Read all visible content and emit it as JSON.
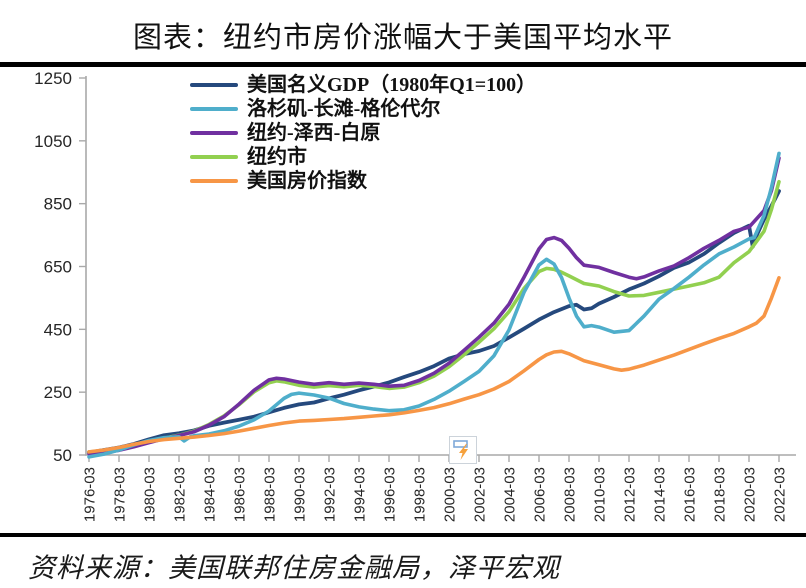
{
  "page": {
    "title": "图表：纽约市房价涨幅大于美国平均水平",
    "source": "资料来源：美国联邦住房金融局，泽平宏观"
  },
  "colors": {
    "rule": "#000000",
    "axis": "#A9A9A9",
    "tick_label": "#262626",
    "gdp_navy": "#25497D",
    "la_aqua": "#4FAECB",
    "ny_metro_purple": "#7030A0",
    "nyc_green": "#92D050",
    "us_hpi_orange": "#F79646"
  },
  "watermark": {
    "name": "zeping-macro-logo"
  },
  "chart_data": {
    "type": "line",
    "title": "图表：纽约市房价涨幅大于美国平均水平",
    "source": "资料来源：美国联邦住房金融局，泽平宏观",
    "grid": false,
    "legend_position": "top-left-inside",
    "x_axis": {
      "tick_labels": [
        "1976-03",
        "1978-03",
        "1980-03",
        "1982-03",
        "1984-03",
        "1986-03",
        "1988-03",
        "1990-03",
        "1992-03",
        "1994-03",
        "1996-03",
        "1998-03",
        "2000-03",
        "2002-03",
        "2004-03",
        "2006-03",
        "2008-03",
        "2010-03",
        "2012-03",
        "2014-03",
        "2016-03",
        "2018-03",
        "2020-03",
        "2022-03"
      ],
      "start_year": 1976.25,
      "tick_step_years": 2
    },
    "y_axis": {
      "ticks": [
        50,
        250,
        450,
        650,
        850,
        1050,
        1250
      ],
      "min": 50,
      "max": 1250
    },
    "series": [
      {
        "id": "us-nominal-gdp",
        "name": "美国名义GDP（1980年Q1=100）",
        "color": "#25497D",
        "z": 1,
        "width": 3.8,
        "points": [
          [
            1976.25,
            58
          ],
          [
            1977.25,
            66
          ],
          [
            1978.25,
            74
          ],
          [
            1979.25,
            85
          ],
          [
            1980.25,
            100
          ],
          [
            1981.25,
            113
          ],
          [
            1982.25,
            119
          ],
          [
            1983.25,
            128
          ],
          [
            1984.25,
            143
          ],
          [
            1985.25,
            153
          ],
          [
            1986.25,
            162
          ],
          [
            1987.25,
            172
          ],
          [
            1988.25,
            186
          ],
          [
            1989.25,
            200
          ],
          [
            1990.25,
            211
          ],
          [
            1991.25,
            217
          ],
          [
            1992.25,
            230
          ],
          [
            1993.25,
            242
          ],
          [
            1994.25,
            256
          ],
          [
            1995.25,
            268
          ],
          [
            1996.25,
            281
          ],
          [
            1997.25,
            298
          ],
          [
            1998.25,
            314
          ],
          [
            1999.25,
            333
          ],
          [
            2000.25,
            357
          ],
          [
            2001.25,
            371
          ],
          [
            2002.25,
            381
          ],
          [
            2003.25,
            397
          ],
          [
            2004.25,
            424
          ],
          [
            2005.25,
            452
          ],
          [
            2006.25,
            481
          ],
          [
            2007.25,
            505
          ],
          [
            2008.25,
            524
          ],
          [
            2008.75,
            528
          ],
          [
            2009.25,
            513
          ],
          [
            2009.75,
            517
          ],
          [
            2010.25,
            532
          ],
          [
            2011.25,
            553
          ],
          [
            2012.25,
            577
          ],
          [
            2013.25,
            596
          ],
          [
            2014.25,
            619
          ],
          [
            2015.25,
            646
          ],
          [
            2016.25,
            663
          ],
          [
            2017.25,
            690
          ],
          [
            2018.25,
            725
          ],
          [
            2019.25,
            757
          ],
          [
            2020.25,
            780
          ],
          [
            2020.5,
            713
          ],
          [
            2020.75,
            748
          ],
          [
            2021.25,
            800
          ],
          [
            2021.75,
            843
          ],
          [
            2022.25,
            890
          ]
        ]
      },
      {
        "id": "la-long-beach-glendale",
        "name": "洛杉矶-长滩-格伦代尔",
        "color": "#4FAECB",
        "z": 4,
        "width": 3.6,
        "points": [
          [
            1976.25,
            44
          ],
          [
            1977.25,
            53
          ],
          [
            1978.25,
            66
          ],
          [
            1979.25,
            82
          ],
          [
            1980.25,
            96
          ],
          [
            1981.25,
            105
          ],
          [
            1982.25,
            108
          ],
          [
            1982.6,
            95
          ],
          [
            1983.0,
            108
          ],
          [
            1983.25,
            111
          ],
          [
            1984.25,
            117
          ],
          [
            1985.25,
            127
          ],
          [
            1986.25,
            142
          ],
          [
            1987.25,
            162
          ],
          [
            1988.25,
            190
          ],
          [
            1989.25,
            230
          ],
          [
            1989.75,
            243
          ],
          [
            1990.25,
            247
          ],
          [
            1991.25,
            241
          ],
          [
            1992.25,
            231
          ],
          [
            1993.25,
            214
          ],
          [
            1994.25,
            203
          ],
          [
            1995.25,
            196
          ],
          [
            1996.25,
            191
          ],
          [
            1997.25,
            194
          ],
          [
            1998.25,
            206
          ],
          [
            1999.25,
            227
          ],
          [
            2000.25,
            253
          ],
          [
            2001.25,
            284
          ],
          [
            2002.25,
            316
          ],
          [
            2003.25,
            366
          ],
          [
            2004.25,
            448
          ],
          [
            2005.25,
            568
          ],
          [
            2006.25,
            655
          ],
          [
            2006.75,
            673
          ],
          [
            2007.25,
            658
          ],
          [
            2007.75,
            615
          ],
          [
            2008.25,
            550
          ],
          [
            2008.75,
            492
          ],
          [
            2009.25,
            458
          ],
          [
            2009.75,
            462
          ],
          [
            2010.25,
            457
          ],
          [
            2011.25,
            441
          ],
          [
            2012.25,
            446
          ],
          [
            2013.25,
            492
          ],
          [
            2014.25,
            546
          ],
          [
            2015.25,
            580
          ],
          [
            2016.25,
            616
          ],
          [
            2017.25,
            655
          ],
          [
            2018.25,
            690
          ],
          [
            2019.25,
            712
          ],
          [
            2020.25,
            738
          ],
          [
            2020.6,
            742
          ],
          [
            2021.25,
            812
          ],
          [
            2021.75,
            902
          ],
          [
            2022.25,
            1010
          ]
        ]
      },
      {
        "id": "ny-jersey-white-plains",
        "name": "纽约-泽西-白原",
        "color": "#7030A0",
        "z": 3,
        "width": 3.6,
        "points": [
          [
            1976.25,
            54
          ],
          [
            1977.25,
            58
          ],
          [
            1978.25,
            65
          ],
          [
            1979.25,
            76
          ],
          [
            1980.25,
            89
          ],
          [
            1981.25,
            102
          ],
          [
            1982.25,
            112
          ],
          [
            1983.25,
            124
          ],
          [
            1984.25,
            145
          ],
          [
            1985.25,
            172
          ],
          [
            1986.25,
            212
          ],
          [
            1987.25,
            256
          ],
          [
            1988.25,
            289
          ],
          [
            1988.75,
            294
          ],
          [
            1989.25,
            292
          ],
          [
            1990.25,
            282
          ],
          [
            1991.25,
            275
          ],
          [
            1992.25,
            280
          ],
          [
            1993.25,
            275
          ],
          [
            1994.25,
            279
          ],
          [
            1995.25,
            275
          ],
          [
            1996.25,
            269
          ],
          [
            1997.25,
            272
          ],
          [
            1998.25,
            287
          ],
          [
            1999.25,
            310
          ],
          [
            2000.25,
            342
          ],
          [
            2001.25,
            383
          ],
          [
            2002.25,
            425
          ],
          [
            2003.25,
            470
          ],
          [
            2004.25,
            530
          ],
          [
            2005.25,
            616
          ],
          [
            2006.25,
            706
          ],
          [
            2006.75,
            736
          ],
          [
            2007.25,
            742
          ],
          [
            2007.75,
            733
          ],
          [
            2008.25,
            708
          ],
          [
            2008.75,
            678
          ],
          [
            2009.25,
            654
          ],
          [
            2010.25,
            647
          ],
          [
            2011.25,
            631
          ],
          [
            2012.25,
            616
          ],
          [
            2012.75,
            611
          ],
          [
            2013.25,
            617
          ],
          [
            2014.25,
            636
          ],
          [
            2015.25,
            652
          ],
          [
            2016.25,
            678
          ],
          [
            2017.25,
            708
          ],
          [
            2018.25,
            733
          ],
          [
            2019.25,
            762
          ],
          [
            2020.25,
            775
          ],
          [
            2021.25,
            828
          ],
          [
            2021.75,
            892
          ],
          [
            2022.25,
            995
          ]
        ]
      },
      {
        "id": "new-york-city",
        "name": "纽约市",
        "color": "#92D050",
        "z": 2,
        "width": 3.6,
        "points": [
          [
            1976.25,
            60
          ],
          [
            1977.25,
            63
          ],
          [
            1978.25,
            70
          ],
          [
            1979.25,
            80
          ],
          [
            1980.25,
            91
          ],
          [
            1981.25,
            103
          ],
          [
            1982.25,
            113
          ],
          [
            1983.25,
            126
          ],
          [
            1984.25,
            147
          ],
          [
            1985.25,
            174
          ],
          [
            1986.25,
            210
          ],
          [
            1987.25,
            251
          ],
          [
            1988.25,
            280
          ],
          [
            1988.75,
            286
          ],
          [
            1989.25,
            283
          ],
          [
            1990.25,
            272
          ],
          [
            1991.25,
            266
          ],
          [
            1992.25,
            271
          ],
          [
            1993.25,
            267
          ],
          [
            1994.25,
            272
          ],
          [
            1995.25,
            268
          ],
          [
            1996.25,
            262
          ],
          [
            1997.25,
            266
          ],
          [
            1998.25,
            280
          ],
          [
            1999.25,
            301
          ],
          [
            2000.25,
            331
          ],
          [
            2001.25,
            369
          ],
          [
            2002.25,
            409
          ],
          [
            2003.25,
            452
          ],
          [
            2004.25,
            506
          ],
          [
            2005.25,
            580
          ],
          [
            2006.25,
            634
          ],
          [
            2006.75,
            644
          ],
          [
            2007.25,
            641
          ],
          [
            2007.75,
            632
          ],
          [
            2008.25,
            620
          ],
          [
            2009.25,
            596
          ],
          [
            2010.25,
            588
          ],
          [
            2011.25,
            570
          ],
          [
            2012.25,
            556
          ],
          [
            2013.25,
            558
          ],
          [
            2014.25,
            568
          ],
          [
            2015.25,
            578
          ],
          [
            2016.25,
            588
          ],
          [
            2017.25,
            598
          ],
          [
            2018.25,
            616
          ],
          [
            2019.25,
            662
          ],
          [
            2020.25,
            697
          ],
          [
            2021.25,
            762
          ],
          [
            2021.75,
            832
          ],
          [
            2022.25,
            920
          ]
        ]
      },
      {
        "id": "us-house-price-index",
        "name": "美国房价指数",
        "color": "#F79646",
        "z": 5,
        "width": 3.6,
        "points": [
          [
            1976.25,
            60
          ],
          [
            1977.25,
            66
          ],
          [
            1978.25,
            74
          ],
          [
            1979.25,
            84
          ],
          [
            1980.25,
            93
          ],
          [
            1981.25,
            99
          ],
          [
            1982.25,
            103
          ],
          [
            1983.25,
            107
          ],
          [
            1984.25,
            112
          ],
          [
            1985.25,
            118
          ],
          [
            1986.25,
            126
          ],
          [
            1987.25,
            135
          ],
          [
            1988.25,
            144
          ],
          [
            1989.25,
            152
          ],
          [
            1990.25,
            158
          ],
          [
            1991.25,
            160
          ],
          [
            1992.25,
            163
          ],
          [
            1993.25,
            166
          ],
          [
            1994.25,
            170
          ],
          [
            1995.25,
            174
          ],
          [
            1996.25,
            178
          ],
          [
            1997.25,
            184
          ],
          [
            1998.25,
            192
          ],
          [
            1999.25,
            201
          ],
          [
            2000.25,
            213
          ],
          [
            2001.25,
            228
          ],
          [
            2002.25,
            242
          ],
          [
            2003.25,
            260
          ],
          [
            2004.25,
            284
          ],
          [
            2005.25,
            318
          ],
          [
            2006.25,
            354
          ],
          [
            2006.75,
            369
          ],
          [
            2007.25,
            378
          ],
          [
            2007.75,
            380
          ],
          [
            2008.25,
            372
          ],
          [
            2009.25,
            350
          ],
          [
            2010.25,
            337
          ],
          [
            2011.25,
            324
          ],
          [
            2011.75,
            320
          ],
          [
            2012.25,
            323
          ],
          [
            2013.25,
            336
          ],
          [
            2014.25,
            352
          ],
          [
            2015.25,
            368
          ],
          [
            2016.25,
            386
          ],
          [
            2017.25,
            404
          ],
          [
            2018.25,
            421
          ],
          [
            2019.25,
            437
          ],
          [
            2020.25,
            458
          ],
          [
            2020.75,
            470
          ],
          [
            2021.25,
            492
          ],
          [
            2021.75,
            550
          ],
          [
            2022.25,
            614
          ]
        ]
      }
    ]
  }
}
